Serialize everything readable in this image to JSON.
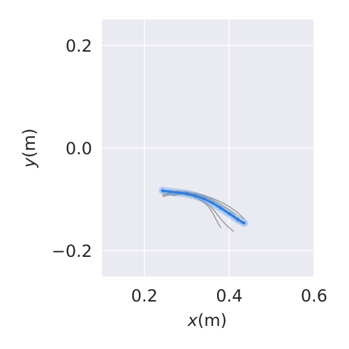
{
  "chart_data": {
    "type": "line",
    "xlabel_parts": {
      "var": "x",
      "unit": "(m)"
    },
    "ylabel_parts": {
      "var": "y",
      "unit": "(m)"
    },
    "xlim": [
      0.1,
      0.6
    ],
    "ylim": [
      -0.25,
      0.25
    ],
    "xticks": [
      0.2,
      0.4,
      0.6
    ],
    "xtick_labels": [
      "0.2",
      "0.4",
      "0.6"
    ],
    "yticks": [
      0.2,
      0.0,
      -0.2
    ],
    "ytick_labels": [
      "0.2",
      "0.0",
      "−0.2"
    ],
    "grid": true,
    "colors": {
      "background": "#eaeaf2",
      "grid": "#ffffff",
      "demonstrations": "#9e9e9e",
      "prediction": "#2e7de2",
      "prediction_band": "#6ea8ec"
    },
    "series": [
      {
        "role": "demonstration",
        "points": [
          [
            0.243,
            -0.093
          ],
          [
            0.25,
            -0.09
          ],
          [
            0.27,
            -0.089
          ],
          [
            0.29,
            -0.09
          ],
          [
            0.31,
            -0.093
          ],
          [
            0.33,
            -0.099
          ],
          [
            0.35,
            -0.109
          ],
          [
            0.365,
            -0.122
          ],
          [
            0.38,
            -0.138
          ],
          [
            0.395,
            -0.152
          ],
          [
            0.41,
            -0.162
          ]
        ]
      },
      {
        "role": "demonstration",
        "points": [
          [
            0.245,
            -0.09
          ],
          [
            0.26,
            -0.087
          ],
          [
            0.28,
            -0.087
          ],
          [
            0.3,
            -0.088
          ],
          [
            0.32,
            -0.091
          ],
          [
            0.34,
            -0.096
          ],
          [
            0.36,
            -0.104
          ],
          [
            0.38,
            -0.114
          ],
          [
            0.4,
            -0.125
          ],
          [
            0.415,
            -0.134
          ],
          [
            0.425,
            -0.14
          ]
        ]
      },
      {
        "role": "demonstration",
        "points": [
          [
            0.244,
            -0.083
          ],
          [
            0.26,
            -0.084
          ],
          [
            0.28,
            -0.084
          ],
          [
            0.3,
            -0.086
          ],
          [
            0.32,
            -0.088
          ],
          [
            0.34,
            -0.092
          ],
          [
            0.36,
            -0.098
          ],
          [
            0.38,
            -0.105
          ],
          [
            0.4,
            -0.114
          ],
          [
            0.42,
            -0.126
          ],
          [
            0.435,
            -0.138
          ]
        ]
      },
      {
        "role": "demonstration",
        "points": [
          [
            0.245,
            -0.095
          ],
          [
            0.255,
            -0.092
          ],
          [
            0.275,
            -0.09
          ],
          [
            0.295,
            -0.091
          ],
          [
            0.315,
            -0.095
          ],
          [
            0.335,
            -0.103
          ],
          [
            0.35,
            -0.113
          ],
          [
            0.36,
            -0.125
          ],
          [
            0.37,
            -0.141
          ],
          [
            0.38,
            -0.155
          ]
        ]
      },
      {
        "role": "demonstration",
        "points": [
          [
            0.242,
            -0.086
          ],
          [
            0.258,
            -0.085
          ],
          [
            0.28,
            -0.084
          ],
          [
            0.3,
            -0.085
          ],
          [
            0.325,
            -0.089
          ],
          [
            0.345,
            -0.096
          ],
          [
            0.365,
            -0.107
          ],
          [
            0.385,
            -0.12
          ],
          [
            0.405,
            -0.132
          ],
          [
            0.42,
            -0.142
          ],
          [
            0.43,
            -0.147
          ]
        ]
      },
      {
        "role": "demonstration",
        "points": [
          [
            0.246,
            -0.092
          ],
          [
            0.255,
            -0.089
          ],
          [
            0.27,
            -0.093
          ],
          [
            0.285,
            -0.088
          ],
          [
            0.3,
            -0.092
          ],
          [
            0.32,
            -0.089
          ],
          [
            0.34,
            -0.094
          ],
          [
            0.36,
            -0.101
          ],
          [
            0.38,
            -0.11
          ],
          [
            0.4,
            -0.12
          ],
          [
            0.415,
            -0.13
          ]
        ]
      },
      {
        "role": "prediction",
        "points": [
          [
            0.243,
            -0.083
          ],
          [
            0.26,
            -0.085
          ],
          [
            0.28,
            -0.087
          ],
          [
            0.3,
            -0.089
          ],
          [
            0.32,
            -0.093
          ],
          [
            0.34,
            -0.099
          ],
          [
            0.36,
            -0.107
          ],
          [
            0.38,
            -0.117
          ],
          [
            0.4,
            -0.128
          ],
          [
            0.42,
            -0.139
          ],
          [
            0.435,
            -0.146
          ]
        ]
      }
    ]
  }
}
